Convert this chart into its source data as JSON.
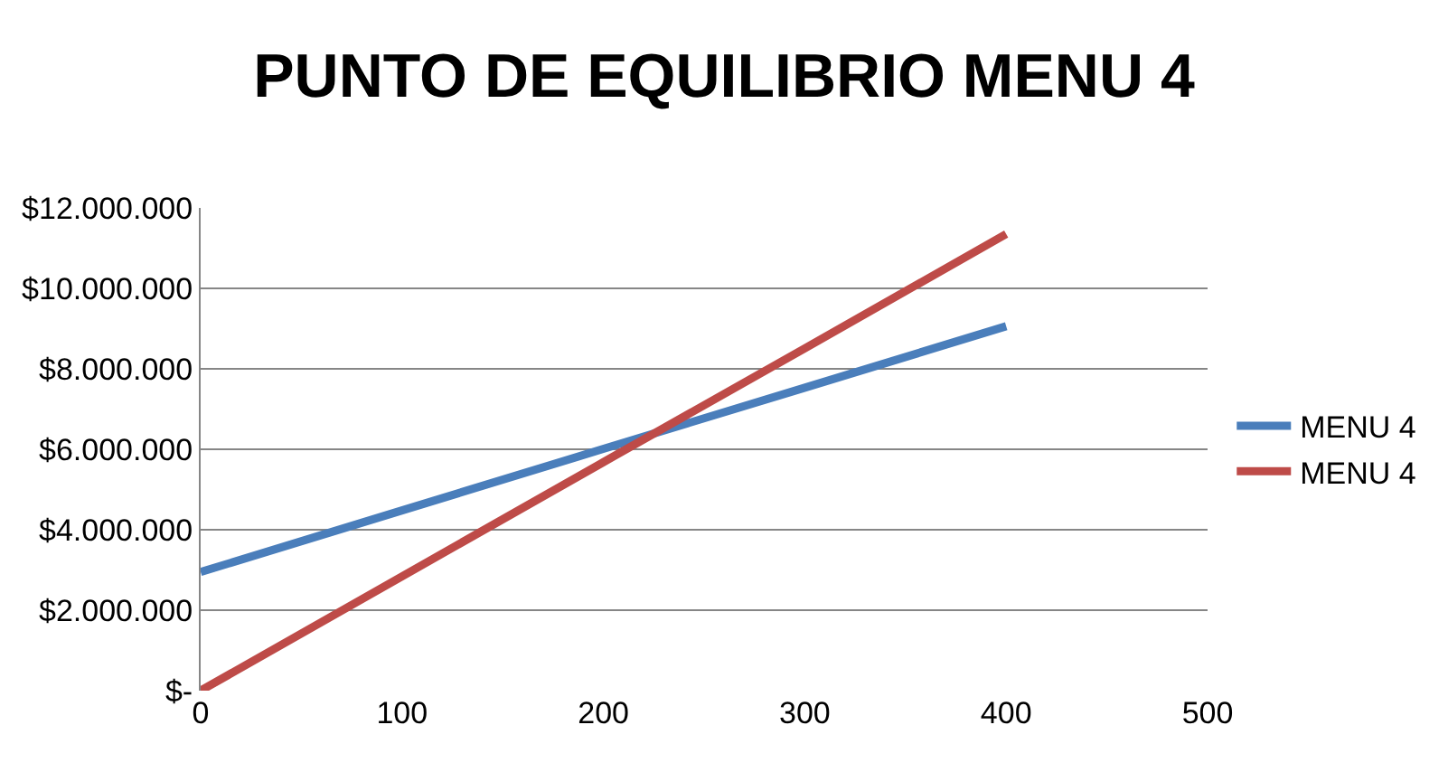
{
  "chart_data": {
    "type": "line",
    "title": "PUNTO DE EQUILIBRIO MENU 4",
    "x": [
      0,
      100,
      200,
      300,
      400
    ],
    "series": [
      {
        "name": "MENU 4",
        "color": "#4a7ebb",
        "values": [
          2950000,
          4480000,
          6010000,
          7530000,
          9060000
        ]
      },
      {
        "name": "MENU 4",
        "color": "#be4b48",
        "values": [
          0,
          2840000,
          5680000,
          8510000,
          11350000
        ]
      }
    ],
    "xlim": [
      0,
      500
    ],
    "xticks": [
      0,
      100,
      200,
      300,
      400,
      500
    ],
    "ylim": [
      0,
      12000000
    ],
    "yticks": [
      {
        "value": 0,
        "label": "$-"
      },
      {
        "value": 2000000,
        "label": "$2.000.000"
      },
      {
        "value": 4000000,
        "label": "$4.000.000"
      },
      {
        "value": 6000000,
        "label": "$6.000.000"
      },
      {
        "value": 8000000,
        "label": "$8.000.000"
      },
      {
        "value": 10000000,
        "label": "$10.000.000"
      },
      {
        "value": 12000000,
        "label": "$12.000.000"
      }
    ],
    "grid": "y",
    "legend": "right",
    "marker": "none",
    "line_style": "solid"
  }
}
